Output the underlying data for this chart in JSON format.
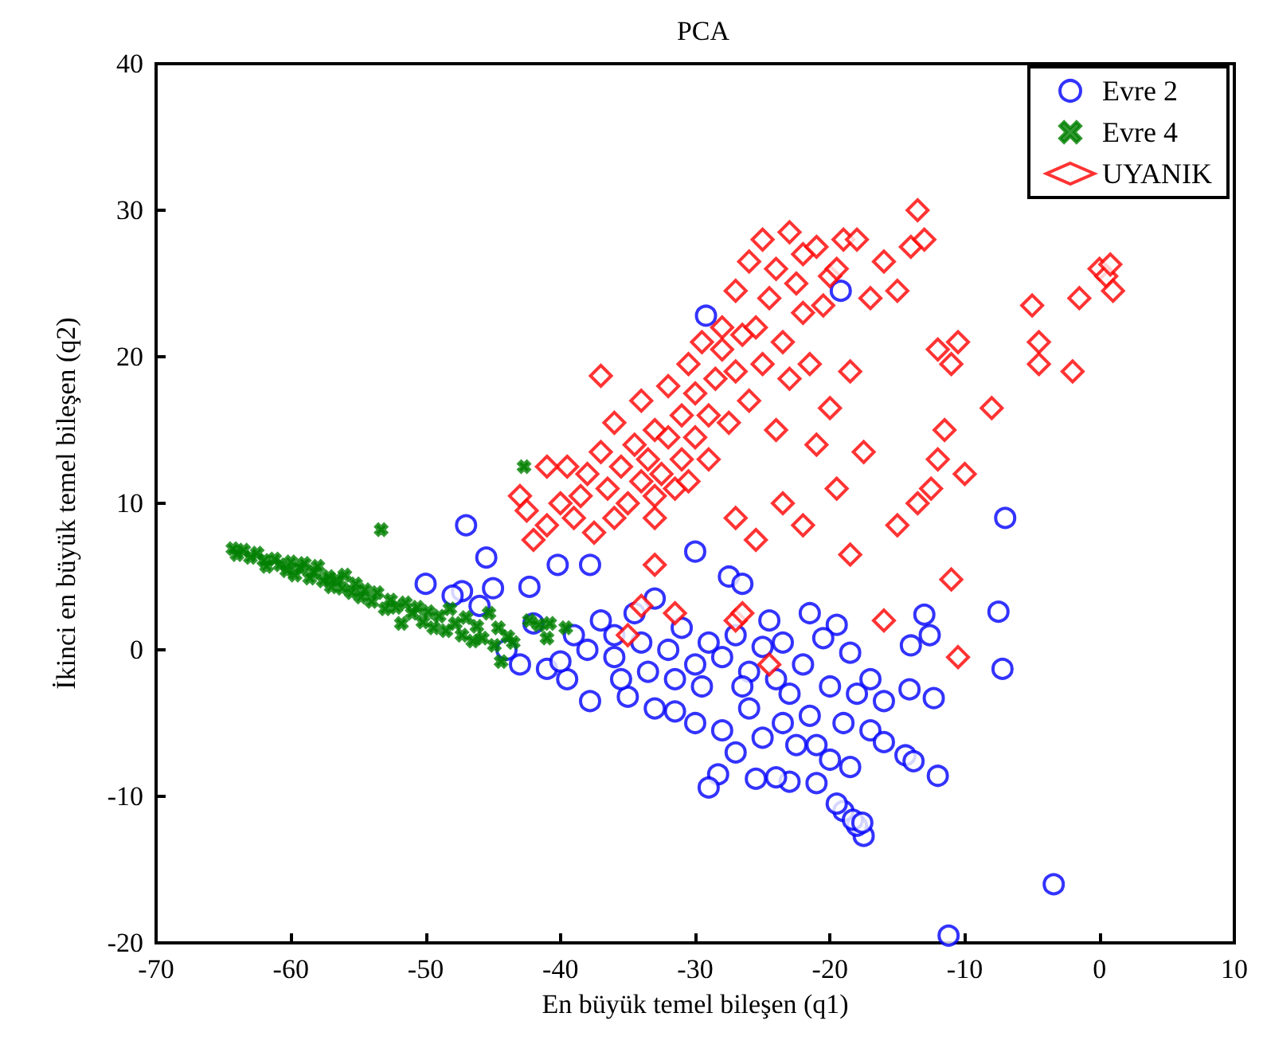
{
  "chart_data": {
    "type": "scatter",
    "title": "PCA",
    "xlabel": "En büyük temel bileşen (q1)",
    "ylabel": "İkinci en büyük temel bileşen (q2)",
    "xlim": [
      -70,
      10
    ],
    "xticks": [
      -70,
      -60,
      -50,
      -40,
      -30,
      -20,
      -10,
      0,
      10
    ],
    "ylim": [
      -20,
      40
    ],
    "yticks": [
      -20,
      -10,
      0,
      10,
      20,
      30,
      40
    ],
    "grid": false,
    "legend": "top right",
    "series": [
      {
        "name": "Evre 2",
        "color": "#0000ff",
        "marker": "circle",
        "x": [
          -47,
          -45.5,
          -42.3,
          -40.2,
          -37.8,
          -29.2,
          -19.2,
          -30,
          -27.5,
          -26.5,
          -7,
          -7.5,
          -7.2,
          -3.4,
          -11.2,
          -13,
          -12.6,
          -14,
          -12.3,
          -14.1,
          -14.4,
          -13.8,
          -12,
          -17.5,
          -18,
          -19,
          -19.5,
          -18.3,
          -17.6,
          -21,
          -23,
          -24,
          -25.5,
          -28.3,
          -29,
          -30,
          -31.5,
          -33,
          -35,
          -37.8,
          -39.5,
          -41,
          -43,
          -42,
          -44,
          -46,
          -47.3,
          -48,
          -50,
          -45,
          -38,
          -36,
          -34,
          -32,
          -30,
          -28,
          -26,
          -24,
          -22,
          -20,
          -18,
          -16,
          -17,
          -18.5,
          -19.5,
          -20.5,
          -21.5,
          -22.5,
          -25,
          -26,
          -27,
          -28,
          -29.5,
          -31,
          -33,
          -34.5,
          -36,
          -37,
          -39,
          -40,
          -35.5,
          -33.5,
          -31.5,
          -29,
          -27,
          -25,
          -23,
          -21,
          -19,
          -17,
          -16,
          -18.5,
          -20,
          -23.5,
          -26.5,
          -24.5,
          -21.5,
          -23.5
        ],
        "values": [
          8.5,
          6.3,
          4.3,
          5.8,
          5.8,
          22.8,
          24.5,
          6.7,
          5,
          4.5,
          9,
          2.6,
          -1.3,
          -16,
          -19.5,
          2.4,
          1,
          0.3,
          -3.3,
          -2.7,
          -7.2,
          -7.6,
          -8.6,
          -12.7,
          -12,
          -11,
          -10.5,
          -11.6,
          -11.8,
          -9.1,
          -9,
          -8.7,
          -8.8,
          -8.5,
          -9.4,
          -5,
          -4.2,
          -4,
          -3.2,
          -3.5,
          -2,
          -1.3,
          -1,
          1.8,
          0,
          3,
          4,
          3.7,
          4.5,
          4.2,
          0,
          1,
          0.5,
          0,
          -1,
          -0.5,
          -1.5,
          -2,
          -1,
          -2.5,
          -3,
          -3.5,
          -2,
          -0.2,
          1.7,
          0.8,
          -4.5,
          -6.5,
          -6,
          -4,
          -7,
          -5.5,
          -2.5,
          1.5,
          3.5,
          2.5,
          -0.5,
          2,
          1,
          -0.8,
          -2,
          -1.5,
          -2,
          0.5,
          1,
          0.2,
          -3,
          -6.5,
          -5,
          -5.5,
          -6.3,
          -8,
          -7.5,
          -5,
          -2.5,
          2,
          2.5,
          0.5
        ]
      },
      {
        "name": "Evre 4",
        "color": "#008000",
        "marker": "cross",
        "x": [
          -64.3,
          -64,
          -63.5,
          -63,
          -62.5,
          -62,
          -61.8,
          -61.2,
          -60.8,
          -60.3,
          -60,
          -59.7,
          -59.3,
          -59,
          -58.6,
          -58.3,
          -58,
          -57.6,
          -57.2,
          -57,
          -56.6,
          -56.2,
          -56,
          -55.5,
          -55.2,
          -54.8,
          -54.5,
          -54,
          -53.6,
          -53.3,
          -53,
          -52.6,
          -52.2,
          -51.8,
          -51.5,
          -51,
          -50.6,
          -50.2,
          -49.8,
          -49.4,
          -49,
          -48.5,
          -48.2,
          -47.8,
          -47.3,
          -47,
          -46.5,
          -46.2,
          -45.8,
          -45.3,
          -44.9,
          -44.6,
          -44.4,
          -43.9,
          -43.5,
          -42.7,
          -42.3,
          -41.6,
          -41,
          -40.8,
          -39.6
        ],
        "values": [
          6.9,
          6.5,
          6.8,
          6.3,
          6.6,
          6.1,
          5.7,
          6.2,
          5.8,
          5.4,
          6,
          5.1,
          5.6,
          5.9,
          4.9,
          5.3,
          5.7,
          4.7,
          5,
          4.3,
          4.8,
          4.2,
          5.1,
          3.9,
          4.5,
          3.6,
          4.1,
          3.3,
          3.9,
          8.2,
          2.8,
          3.4,
          2.9,
          1.8,
          3.2,
          2.5,
          2.9,
          1.9,
          2.6,
          1.5,
          2.3,
          1.3,
          2.8,
          1.8,
          1,
          2.2,
          0.6,
          1.6,
          0.8,
          2.5,
          0.3,
          1.5,
          -0.8,
          0.9,
          0.5,
          12.5,
          2,
          1.7,
          0.8,
          1.8,
          1.5
        ]
      },
      {
        "name": "UYANIK",
        "color": "#ff0000",
        "marker": "diamond",
        "x": [
          -43,
          -42.5,
          -42,
          -41,
          -40,
          -39,
          -38.5,
          -38,
          -37.5,
          -37,
          -36.5,
          -36,
          -36,
          -35.5,
          -35,
          -34.5,
          -34,
          -34,
          -33.5,
          -33,
          -33,
          -32.5,
          -32,
          -32,
          -31.5,
          -31,
          -31,
          -30.5,
          -30,
          -30,
          -29.5,
          -29,
          -29,
          -28.5,
          -28,
          -28,
          -27.5,
          -27,
          -27,
          -26.5,
          -26,
          -26,
          -25.5,
          -25,
          -25,
          -24.5,
          -24,
          -24,
          -23.5,
          -23,
          -23,
          -22.5,
          -22,
          -22,
          -21.5,
          -21,
          -21,
          -20.5,
          -20,
          -19.5,
          -19,
          -18,
          -17,
          -20,
          -19.5,
          -18.5,
          -17.5,
          -16,
          -15,
          -14,
          -13.5,
          -13,
          -12,
          -11.5,
          -11,
          -10,
          -10.5,
          -8,
          -5,
          -4.5,
          -4.5,
          -2,
          -1.5,
          0,
          0.5,
          1,
          0.8,
          -12,
          -12.5,
          -13.5,
          -15,
          -16,
          -18.5,
          -22,
          -23.5,
          -25.5,
          -27,
          -31.5,
          -34,
          -35,
          -33,
          -27,
          -26.5,
          -24.5,
          -11,
          -10.5,
          -37,
          -39.5,
          -41,
          -30.5,
          -33
        ],
        "values": [
          10.5,
          9.5,
          7.5,
          8.5,
          10,
          9,
          10.5,
          12,
          8,
          13.5,
          11,
          15.5,
          9,
          12.5,
          10,
          14,
          11.5,
          17,
          13,
          10.5,
          15,
          12,
          14.5,
          18,
          11,
          16,
          13,
          19.5,
          14.5,
          17.5,
          21,
          16,
          13,
          18.5,
          22,
          20.5,
          15.5,
          24.5,
          19,
          21.5,
          26.5,
          17,
          22,
          28,
          19.5,
          24,
          26,
          15,
          21,
          28.5,
          18.5,
          25,
          27,
          23,
          19.5,
          27.5,
          14,
          23.5,
          25.5,
          26,
          28,
          28,
          24,
          16.5,
          11,
          19,
          13.5,
          26.5,
          24.5,
          27.5,
          30,
          28,
          20.5,
          15,
          19.5,
          12,
          21,
          16.5,
          23.5,
          21,
          19.5,
          19,
          24,
          26,
          25.5,
          24.5,
          26.3,
          13,
          11,
          10,
          8.5,
          2,
          6.5,
          8.5,
          10,
          7.5,
          9,
          2.5,
          3,
          1,
          5.8,
          2,
          2.5,
          -1,
          4.8,
          -0.5,
          18.7,
          12.5,
          12.5,
          11.5,
          9
        ]
      }
    ]
  }
}
